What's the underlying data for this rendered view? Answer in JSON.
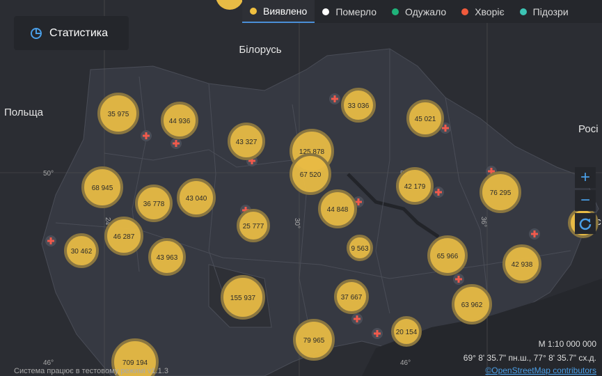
{
  "tabs": [
    {
      "label": "Виявлено",
      "color": "#f0c040"
    },
    {
      "label": "Померло",
      "color": "#ffffff"
    },
    {
      "label": "Одужало",
      "color": "#1fb37a"
    },
    {
      "label": "Хворіє",
      "color": "#f05a3c"
    },
    {
      "label": "Підозри",
      "color": "#3cc4b4"
    }
  ],
  "stats_button": "Статистика",
  "places": [
    "Білорусь",
    "Польща",
    "Росі",
    "Луганс"
  ],
  "grid_labels": [
    "50°",
    "24°",
    "30°",
    "36°",
    "50°",
    "46°",
    "46°"
  ],
  "clusters": [
    "35 975",
    "44 936",
    "43 327",
    "125 878",
    "67 520",
    "33 036",
    "45 021",
    "68 945",
    "36 778",
    "43 040",
    "25 777",
    "44 848",
    "42 179",
    "76 295",
    "46 287",
    "30 462",
    "43 963",
    "155 937",
    "9 563",
    "65 966",
    "42 938",
    "37 667",
    "63 962",
    "20 154",
    "79 965",
    "709 194"
  ],
  "zoom": {
    "in": "+",
    "out": "−"
  },
  "scale": "М 1:10 000 000",
  "coordinates": "69° 8' 35.7\" пн.ш., 77° 8' 35.7\" сх.д.",
  "attribution": "©OpenStreetMap contributors",
  "footer": "Система працює в тестовому режимі v1.1.3"
}
